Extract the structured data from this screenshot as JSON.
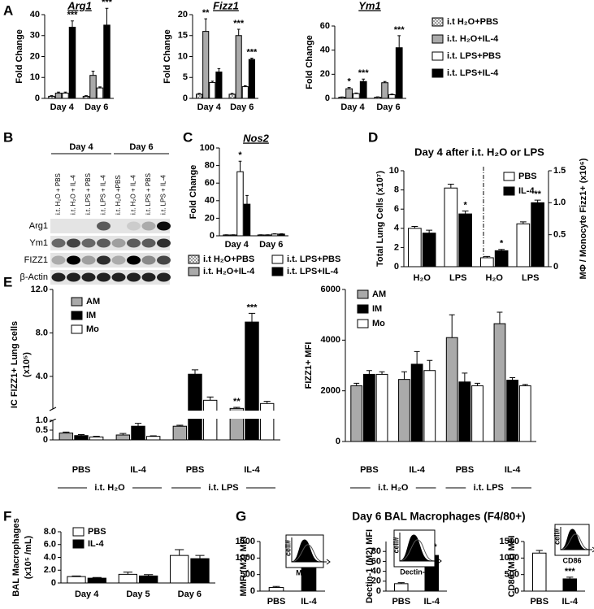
{
  "chart_data": [
    {
      "type": "bar",
      "panel": "A",
      "title": "Arg1",
      "ylabel": "Fold Change",
      "categories": [
        "Day 4",
        "Day 6"
      ],
      "ylim": [
        0,
        40
      ],
      "yticks": [
        0,
        10,
        20,
        30,
        40
      ],
      "series": [
        {
          "name": "i.t H₂O+PBS",
          "color": "#ffffff",
          "hatch": true,
          "values": [
            1,
            1
          ],
          "errors": [
            0.3,
            0.3
          ],
          "significance": [
            null,
            null
          ]
        },
        {
          "name": "i.t. H₂O+IL-4",
          "color": "#aaaaaa",
          "values": [
            2.5,
            11
          ],
          "errors": [
            0.5,
            2
          ],
          "significance": [
            null,
            null
          ]
        },
        {
          "name": "i.t. LPS+PBS",
          "color": "#ffffff",
          "values": [
            2.5,
            5
          ],
          "errors": [
            0.5,
            0.5
          ],
          "significance": [
            null,
            null
          ]
        },
        {
          "name": "i.t. LPS+IL-4",
          "color": "#000000",
          "values": [
            34,
            35
          ],
          "errors": [
            3,
            8
          ],
          "significance": [
            "***",
            "***"
          ]
        }
      ],
      "legend": true
    },
    {
      "type": "bar",
      "title": "Fizz1",
      "ylabel": "Fold Change",
      "categories": [
        "Day 4",
        "Day 6"
      ],
      "ylim": [
        0,
        20
      ],
      "yticks": [
        0,
        5,
        10,
        15,
        20
      ],
      "series": [
        {
          "color": "#ffffff",
          "hatch": true,
          "values": [
            1,
            1
          ],
          "errors": [
            0.2,
            0.2
          ],
          "significance": [
            null,
            null
          ]
        },
        {
          "color": "#aaaaaa",
          "values": [
            16,
            15
          ],
          "errors": [
            3,
            1.5
          ],
          "significance": [
            "**",
            "***"
          ]
        },
        {
          "color": "#ffffff",
          "values": [
            3.8,
            2.8
          ],
          "errors": [
            0.3,
            0.2
          ],
          "significance": [
            null,
            null
          ]
        },
        {
          "color": "#000000",
          "values": [
            6.3,
            9.3
          ],
          "errors": [
            0.8,
            0.3
          ],
          "significance": [
            null,
            "***"
          ]
        }
      ]
    },
    {
      "type": "bar",
      "title": "Ym1",
      "ylabel": "Fold Change",
      "categories": [
        "Day 4",
        "Day 6"
      ],
      "ylim": [
        0,
        60
      ],
      "yticks": [
        0,
        20,
        40,
        60
      ],
      "series": [
        {
          "color": "#ffffff",
          "hatch": true,
          "values": [
            1,
            1
          ],
          "errors": [
            0.2,
            0.3
          ],
          "significance": [
            null,
            null
          ]
        },
        {
          "color": "#aaaaaa",
          "values": [
            8,
            13
          ],
          "errors": [
            1,
            1
          ],
          "significance": [
            "*",
            null
          ]
        },
        {
          "color": "#ffffff",
          "values": [
            4,
            3
          ],
          "errors": [
            0.5,
            0.5
          ],
          "significance": [
            null,
            null
          ]
        },
        {
          "color": "#000000",
          "values": [
            14,
            42
          ],
          "errors": [
            2,
            10
          ],
          "significance": [
            "***",
            "***"
          ]
        }
      ]
    },
    {
      "type": "blot",
      "panel": "B",
      "columns": [
        "Day 4",
        "Day 6"
      ],
      "lanes": [
        "i.t. H₂O + PBS",
        "i.t. H₂O + IL-4",
        "i.t. LPS + PBS",
        "i.t. LPS + IL-4",
        "i.t. H₂O +PBS",
        "i.t. H₂O + IL-4",
        "i.t. LPS + PBS",
        "i.t. LPS + IL-4"
      ],
      "rows": [
        "Arg1",
        "Ym1",
        "FIZZ1",
        "β-Actin"
      ]
    },
    {
      "type": "bar",
      "panel": "C",
      "title": "Nos2",
      "ylabel": "Fold Change",
      "categories": [
        "Day 4",
        "Day 6"
      ],
      "ylim": [
        0,
        100
      ],
      "yticks": [
        0,
        20,
        40,
        60,
        80,
        100
      ],
      "series": [
        {
          "name": "i.t H₂O+PBS",
          "color": "#ffffff",
          "hatch": true,
          "values": [
            1,
            1
          ],
          "errors": [
            0.2,
            0.2
          ],
          "significance": [
            null,
            null
          ]
        },
        {
          "name": "i.t. H₂O+IL-4",
          "color": "#aaaaaa",
          "values": [
            1,
            1
          ],
          "errors": [
            0.2,
            0.2
          ],
          "significance": [
            null,
            null
          ]
        },
        {
          "name": "i.t. LPS+PBS",
          "color": "#ffffff",
          "values": [
            73,
            2
          ],
          "errors": [
            12,
            0.3
          ],
          "significance": [
            "*",
            null
          ]
        },
        {
          "name": "i.t. LPS+IL-4",
          "color": "#000000",
          "values": [
            36,
            2
          ],
          "errors": [
            10,
            0.3
          ],
          "significance": [
            null,
            null
          ]
        }
      ],
      "legend": true
    },
    {
      "type": "bar",
      "panel": "D",
      "title": "Day 4 after i.t. H₂O or LPS",
      "ylabel": "Total Lung Cells (x10⁷)",
      "y2label": "MΦ / Monocyte Fizz1+ (x10⁶)",
      "categories": [
        "H₂O",
        "LPS",
        "H₂O",
        "LPS"
      ],
      "ylim": [
        0,
        10
      ],
      "yticks": [
        0,
        2,
        4,
        6,
        8,
        10
      ],
      "y2lim": [
        0,
        1.5
      ],
      "y2ticks": [
        0,
        0.5,
        {
          "value": 1,
          "label": "1.0"
        },
        1.5
      ],
      "series": [
        {
          "name": "PBS",
          "color": "#ffffff",
          "values": [
            4.0,
            8.2,
            null,
            null
          ],
          "errors": [
            0.2,
            0.4,
            null,
            null
          ],
          "significance": [
            null,
            null,
            null,
            null
          ]
        },
        {
          "name": "IL-4",
          "color": "#000000",
          "values": [
            3.5,
            5.5,
            null,
            null
          ],
          "errors": [
            0.3,
            0.3,
            null,
            null
          ],
          "significance": [
            null,
            "*",
            null,
            null
          ]
        },
        {
          "axis": "y2",
          "color": "#ffffff",
          "values": [
            null,
            null,
            0.14,
            0.67
          ],
          "errors": [
            null,
            null,
            0.02,
            0.03
          ],
          "significance": [
            null,
            null,
            null,
            null
          ]
        },
        {
          "axis": "y2",
          "color": "#000000",
          "values": [
            null,
            null,
            0.25,
            1.0
          ],
          "errors": [
            null,
            null,
            0.02,
            0.04
          ],
          "significance": [
            null,
            null,
            "*",
            "**"
          ]
        }
      ],
      "legend": true,
      "divider": true
    },
    {
      "type": "bar",
      "panel": "E",
      "ylabel": [
        "IC FIZZ1+ Lung cells",
        "(x10⁵)"
      ],
      "categories": [
        "PBS",
        "IL-4",
        "PBS",
        "IL-4"
      ],
      "groups": [
        "i.t. H₂O",
        "i.t. LPS"
      ],
      "ylim": [
        0,
        12
      ],
      "axis_break": 1,
      "yticks": [
        0,
        0.5,
        {
          "value": 1,
          "label": "1.0"
        },
        {
          "value": 4,
          "label": "4.0"
        },
        {
          "value": 8,
          "label": "8.0"
        },
        {
          "value": 12,
          "label": "12.0"
        }
      ],
      "series": [
        {
          "name": "AM",
          "color": "#aaaaaa",
          "values": [
            0.35,
            0.25,
            0.7,
            1.05
          ],
          "errors": [
            0.05,
            0.08,
            0.05,
            0.1
          ],
          "significance": [
            null,
            null,
            null,
            "**"
          ]
        },
        {
          "name": "IM",
          "color": "#000000",
          "values": [
            0.22,
            0.7,
            4.2,
            9.0
          ],
          "errors": [
            0.05,
            0.15,
            0.4,
            0.8
          ],
          "significance": [
            null,
            "**",
            null,
            "***"
          ]
        },
        {
          "name": "Mo",
          "color": "#ffffff",
          "values": [
            0.15,
            0.18,
            1.8,
            1.5
          ],
          "errors": [
            0.03,
            0.03,
            0.3,
            0.2
          ],
          "significance": [
            null,
            null,
            null,
            null
          ]
        }
      ],
      "legend": true
    },
    {
      "type": "bar",
      "ylabel": "FIZZ1+ MFI",
      "categories": [
        "PBS",
        "IL-4",
        "PBS",
        "IL-4"
      ],
      "groups": [
        "i.t. H₂O",
        "i.t. LPS"
      ],
      "ylim": [
        0,
        6000
      ],
      "yticks": [
        0,
        2000,
        4000,
        6000
      ],
      "series": [
        {
          "name": "AM",
          "color": "#aaaaaa",
          "values": [
            2200,
            2450,
            4100,
            4650
          ],
          "errors": [
            100,
            300,
            900,
            450
          ]
        },
        {
          "name": "IM",
          "color": "#000000",
          "values": [
            2650,
            3050,
            2350,
            2420
          ],
          "errors": [
            150,
            500,
            350,
            100
          ]
        },
        {
          "name": "Mo",
          "color": "#ffffff",
          "values": [
            2650,
            2800,
            2200,
            2200
          ],
          "errors": [
            100,
            400,
            100,
            50
          ]
        }
      ],
      "legend": true
    },
    {
      "type": "bar",
      "panel": "F",
      "ylabel": [
        "BAL Macrophages",
        "(x10⁵ /mL)"
      ],
      "categories": [
        "Day 4",
        "Day 5",
        "Day 6"
      ],
      "ylim": [
        0,
        8
      ],
      "yticks": [
        0,
        {
          "value": 2,
          "label": "2.0"
        },
        {
          "value": 4,
          "label": "4.0"
        },
        {
          "value": 6,
          "label": "6.0"
        },
        {
          "value": 8,
          "label": "8.0"
        }
      ],
      "series": [
        {
          "name": "PBS",
          "color": "#ffffff",
          "values": [
            1.0,
            1.35,
            4.3
          ],
          "errors": [
            0.1,
            0.35,
            0.9
          ]
        },
        {
          "name": "IL-4",
          "color": "#000000",
          "values": [
            0.75,
            1.1,
            3.8
          ],
          "errors": [
            0.1,
            0.2,
            0.5
          ]
        }
      ],
      "legend": true
    },
    {
      "type": "bar",
      "panel": "G",
      "panel_title": "Day 6 BAL Macrophages (F4/80+)",
      "ylabel": "MMR (M2) MFI",
      "categories": [
        "PBS",
        "IL-4"
      ],
      "values": [
        110,
        900
      ],
      "errors": [
        30,
        100
      ],
      "colors": [
        "#ffffff",
        "#000000"
      ],
      "significance": [
        null,
        "**"
      ],
      "ylim": [
        0,
        1500
      ],
      "yticks": [
        0,
        500,
        1000,
        1500
      ],
      "inset": {
        "ylabel": "cell#",
        "xlabel": "MMR"
      }
    },
    {
      "type": "bar",
      "ylabel": "Dectin-1 (M2) MFI",
      "categories": [
        "PBS",
        "IL-4"
      ],
      "values": [
        15,
        72
      ],
      "errors": [
        2,
        5
      ],
      "colors": [
        "#ffffff",
        "#000000"
      ],
      "significance": [
        null,
        "***"
      ],
      "ylim": [
        0,
        100
      ],
      "yticks": [
        0,
        20,
        40,
        60,
        80
      ],
      "inset": {
        "ylabel": "cell#",
        "xlabel": "Dectin-1"
      }
    },
    {
      "type": "bar",
      "ylabel": "CD86 (M1) MFI",
      "categories": [
        "PBS",
        "IL-4"
      ],
      "values": [
        1150,
        370
      ],
      "errors": [
        80,
        50
      ],
      "colors": [
        "#ffffff",
        "#000000"
      ],
      "significance": [
        null,
        "***"
      ],
      "ylim": [
        0,
        1500
      ],
      "yticks": [
        0,
        500,
        1000,
        1500
      ],
      "inset": {
        "ylabel": "cell#",
        "xlabel": "CD86"
      }
    }
  ]
}
